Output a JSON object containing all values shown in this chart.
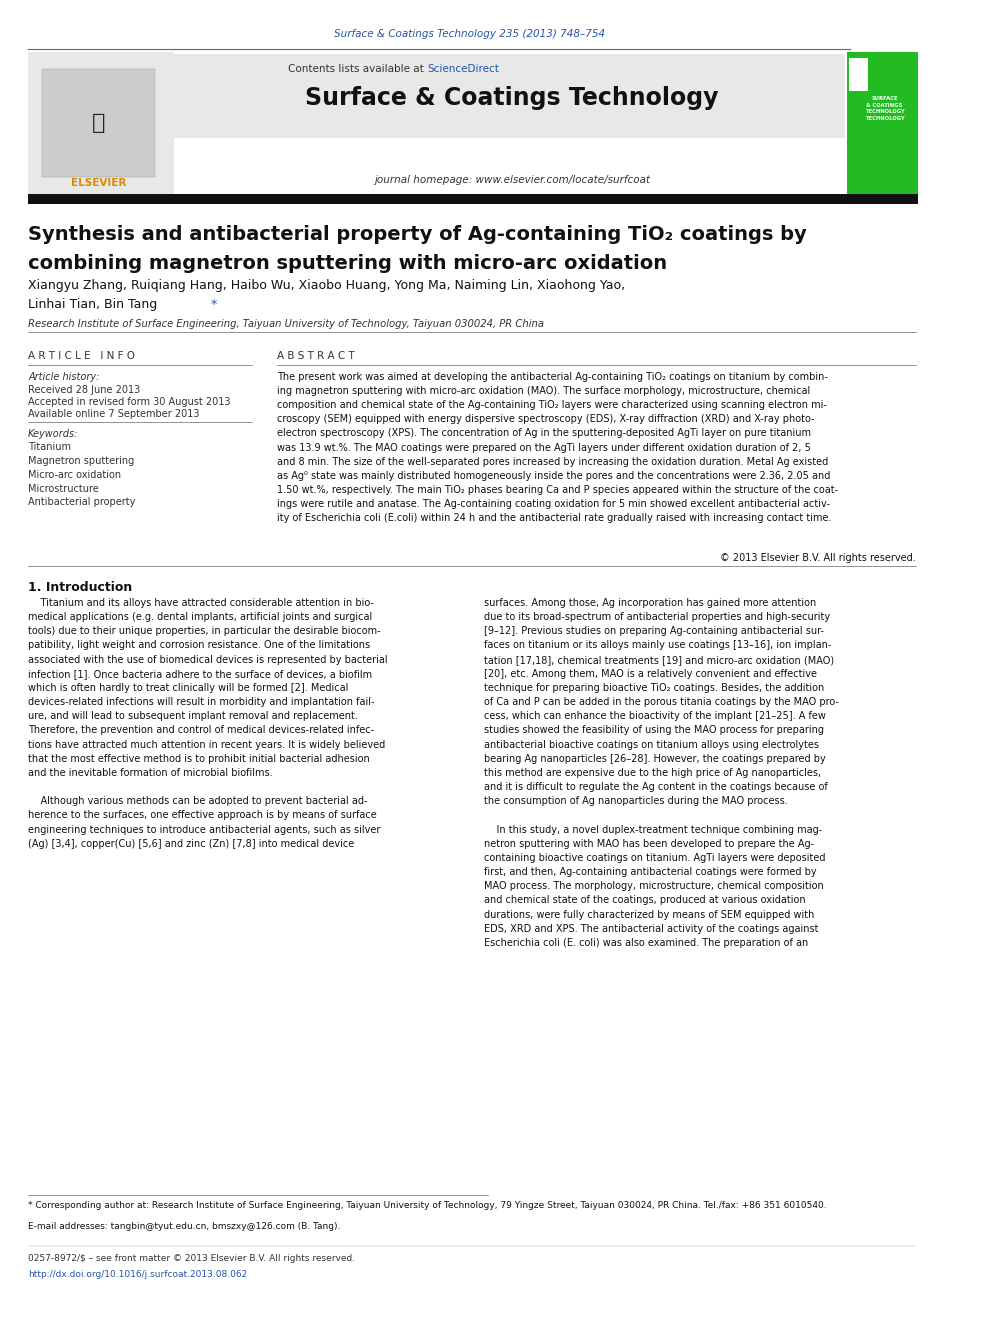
{
  "page_width": 9.92,
  "page_height": 13.23,
  "background_color": "#ffffff",
  "top_citation": "Surface & Coatings Technology 235 (2013) 748–754",
  "top_citation_color": "#2255aa",
  "journal_header_bg": "#e8e8e8",
  "journal_header_text": "Surface & Coatings Technology",
  "journal_homepage": "journal homepage: www.elsevier.com/locate/surfcoat",
  "elsevier_logo_color": "#dd8800",
  "green_box_color": "#22bb22",
  "black_bar_color": "#111111",
  "article_title_line1": "Synthesis and antibacterial property of Ag-containing TiO₂ coatings by",
  "article_title_line2": "combining magnetron sputtering with micro-arc oxidation",
  "authors": "Xiangyu Zhang, Ruiqiang Hang, Haibo Wu, Xiaobo Huang, Yong Ma, Naiming Lin, Xiaohong Yao,",
  "authors_line2": "Linhai Tian, Bin Tang ",
  "affiliation": "Research Institute of Surface Engineering, Taiyuan University of Technology, Taiyuan 030024, PR China",
  "article_info_title": "A R T I C L E   I N F O",
  "abstract_title": "A B S T R A C T",
  "article_history_label": "Article history:",
  "received": "Received 28 June 2013",
  "accepted": "Accepted in revised form 30 August 2013",
  "available": "Available online 7 September 2013",
  "keywords_label": "Keywords:",
  "keywords": [
    "Titanium",
    "Magnetron sputtering",
    "Micro-arc oxidation",
    "Microstructure",
    "Antibacterial property"
  ],
  "copyright": "© 2013 Elsevier B.V. All rights reserved.",
  "intro_heading": "1. Introduction",
  "footnote_star": "* Corresponding author at: Research Institute of Surface Engineering, Taiyuan University of Technology, 79 Yingze Street, Taiyuan 030024, PR China. Tel./fax: +86 351 6010540.",
  "footnote_email": "E-mail addresses: tangbin@tyut.edu.cn, bmszxy@126.com (B. Tang).",
  "bottom_line1": "0257-8972/$ – see front matter © 2013 Elsevier B.V. All rights reserved.",
  "bottom_line2": "http://dx.doi.org/10.1016/j.surfcoat.2013.08.062"
}
